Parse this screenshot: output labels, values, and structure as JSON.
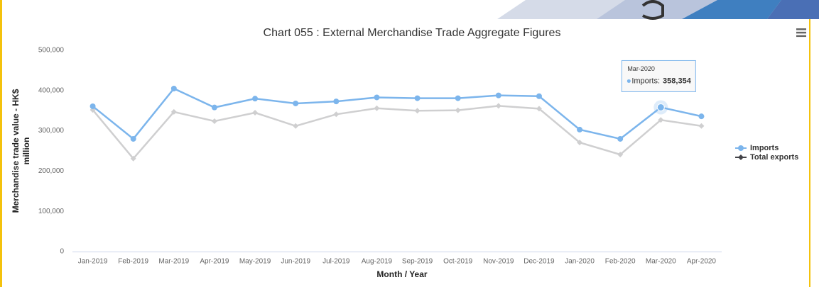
{
  "chart_data": {
    "type": "line",
    "title": "Chart 055 : External Merchandise Trade Aggregate Figures",
    "xlabel": "Month / Year",
    "ylabel": [
      "Merchandise trade value - HK$",
      "million"
    ],
    "categories": [
      "Jan-2019",
      "Feb-2019",
      "Mar-2019",
      "Apr-2019",
      "May-2019",
      "Jun-2019",
      "Jul-2019",
      "Aug-2019",
      "Sep-2019",
      "Oct-2019",
      "Nov-2019",
      "Dec-2019",
      "Jan-2020",
      "Feb-2020",
      "Mar-2020",
      "Apr-2020"
    ],
    "series": [
      {
        "name": "Imports",
        "color": "#7cb5ec",
        "values": [
          361000,
          280000,
          405000,
          358000,
          380000,
          368000,
          373000,
          383000,
          381000,
          381000,
          388000,
          386000,
          303000,
          280000,
          358354,
          336000
        ]
      },
      {
        "name": "Total exports",
        "color": "#434348",
        "values": [
          352000,
          231000,
          347000,
          324000,
          345000,
          312000,
          341000,
          356000,
          350000,
          351000,
          362000,
          355000,
          271000,
          241000,
          327000,
          312000
        ]
      }
    ],
    "ylim": [
      0,
      500000
    ],
    "yticks": [
      0,
      {
        "value": 100000,
        "label": "100,000"
      },
      {
        "value": 200000,
        "label": "200,000"
      },
      {
        "value": 300000,
        "label": "300,000"
      },
      {
        "value": 400000,
        "label": "400,000"
      },
      {
        "value": 500000,
        "label": "500,000"
      }
    ],
    "grid": false,
    "legend": "right",
    "tooltip": {
      "title": "Mar-2020",
      "label": "Imports:",
      "value": "358,354"
    }
  }
}
